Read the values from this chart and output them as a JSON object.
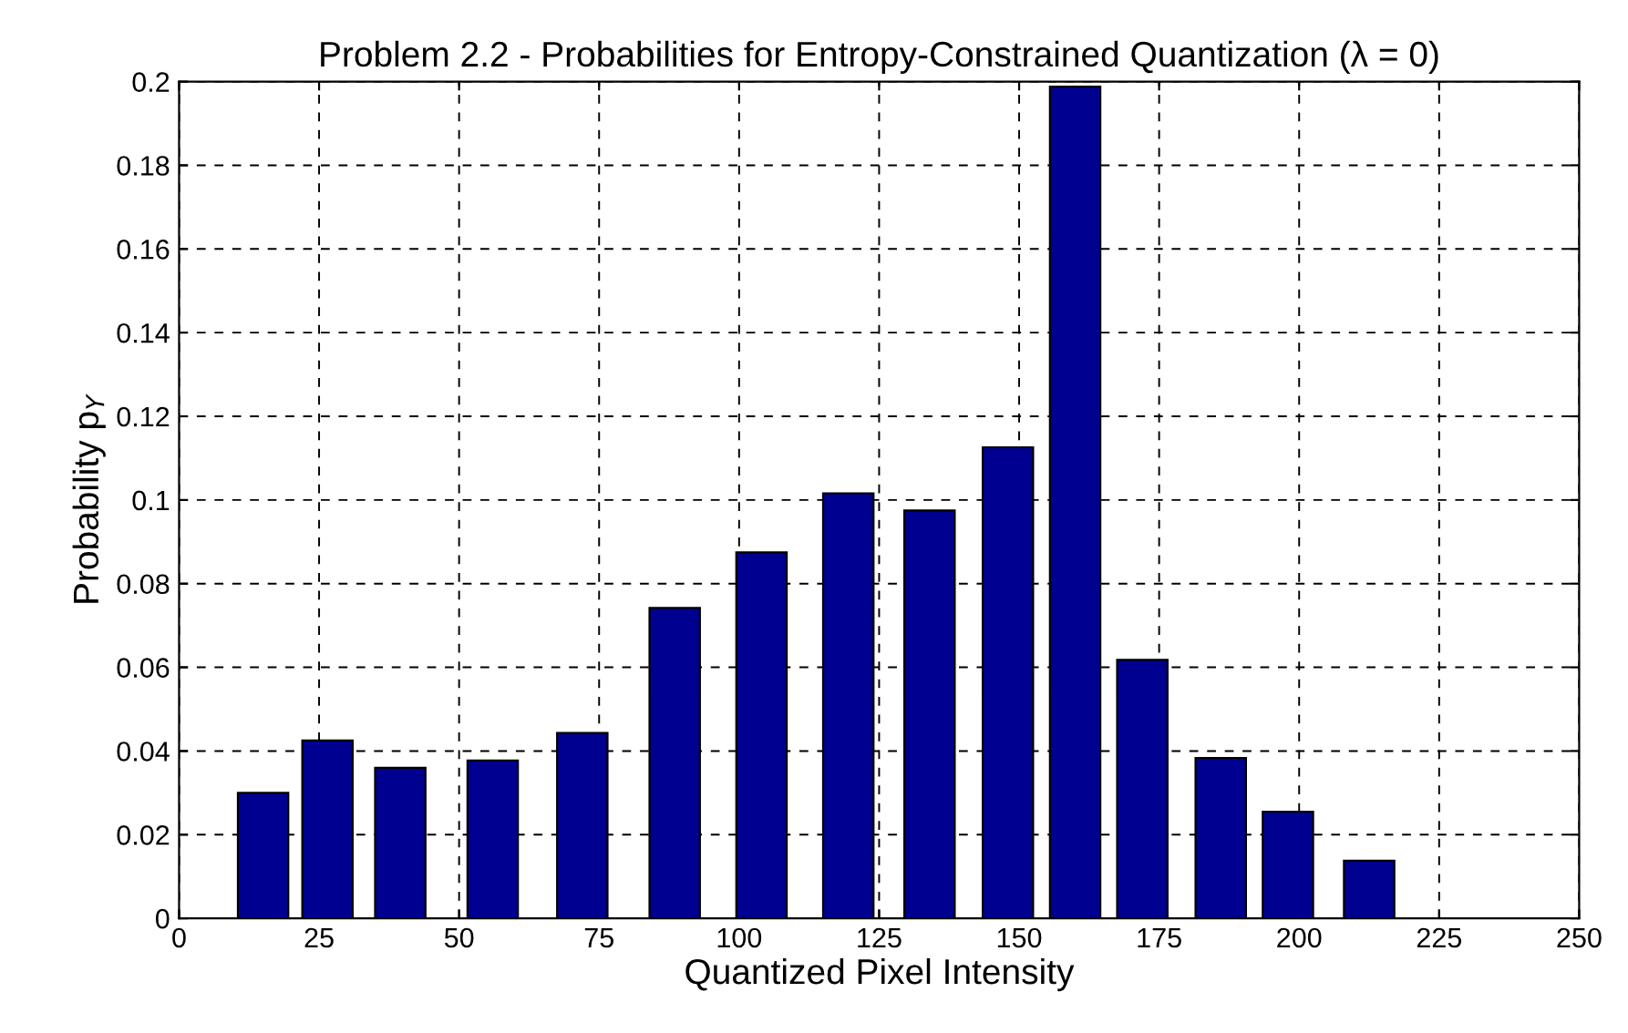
{
  "chart_data": {
    "type": "bar",
    "title": "Problem 2.2 - Probabilities for Entropy-Constrained Quantization (λ = 0)",
    "xlabel": "Quantized Pixel Intensity",
    "ylabel": "Probability p$_{Y}$",
    "x": [
      15,
      26.5,
      39.5,
      56,
      72,
      88.5,
      104,
      119.5,
      134,
      148,
      160,
      172,
      186,
      198,
      212.5
    ],
    "values": [
      0.03,
      0.0425,
      0.036,
      0.0377,
      0.0443,
      0.0742,
      0.0875,
      0.1016,
      0.0975,
      0.1126,
      0.1988,
      0.0618,
      0.0383,
      0.0255,
      0.0138
    ],
    "color": "#000090",
    "xlim": [
      0,
      250
    ],
    "xticks": [
      0,
      25,
      50,
      75,
      100,
      125,
      150,
      175,
      200,
      225,
      250
    ],
    "ylim": [
      0,
      0.2
    ],
    "yticks": [
      0,
      0.02,
      0.04,
      0.06,
      0.08,
      0.1,
      0.12,
      0.14,
      0.16,
      0.18,
      0.2
    ],
    "grid": true
  }
}
